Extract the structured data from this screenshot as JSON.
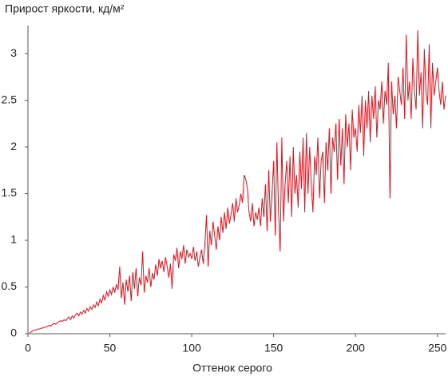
{
  "chart_data": {
    "type": "line",
    "title": "Прирост яркости, кд/м²",
    "x_label": "Оттенок серого",
    "xlim": [
      0,
      255
    ],
    "ylim": [
      0,
      3.3
    ],
    "xticks": [
      0,
      50,
      100,
      150,
      200,
      250
    ],
    "yticks": [
      0,
      0.5,
      1,
      1.5,
      2,
      2.5,
      3
    ],
    "grid": false,
    "series": [
      {
        "color": "#e8101a",
        "x": [
          1,
          2,
          3,
          4,
          5,
          6,
          7,
          8,
          9,
          10,
          11,
          12,
          13,
          14,
          15,
          16,
          17,
          18,
          19,
          20,
          21,
          22,
          23,
          24,
          25,
          26,
          27,
          28,
          29,
          30,
          31,
          32,
          33,
          34,
          35,
          36,
          37,
          38,
          39,
          40,
          41,
          42,
          43,
          44,
          45,
          46,
          47,
          48,
          49,
          50,
          51,
          52,
          53,
          54,
          55,
          56,
          57,
          58,
          59,
          60,
          61,
          62,
          63,
          64,
          65,
          66,
          67,
          68,
          69,
          70,
          71,
          72,
          73,
          74,
          75,
          76,
          77,
          78,
          79,
          80,
          81,
          82,
          83,
          84,
          85,
          86,
          87,
          88,
          89,
          90,
          91,
          92,
          93,
          94,
          95,
          96,
          97,
          98,
          99,
          100,
          101,
          102,
          103,
          104,
          105,
          106,
          107,
          108,
          109,
          110,
          111,
          112,
          113,
          114,
          115,
          116,
          117,
          118,
          119,
          120,
          121,
          122,
          123,
          124,
          125,
          126,
          127,
          128,
          129,
          130,
          131,
          132,
          133,
          134,
          135,
          136,
          137,
          138,
          139,
          140,
          141,
          142,
          143,
          144,
          145,
          146,
          147,
          148,
          149,
          150,
          151,
          152,
          153,
          154,
          155,
          156,
          157,
          158,
          159,
          160,
          161,
          162,
          163,
          164,
          165,
          166,
          167,
          168,
          169,
          170,
          171,
          172,
          173,
          174,
          175,
          176,
          177,
          178,
          179,
          180,
          181,
          182,
          183,
          184,
          185,
          186,
          187,
          188,
          189,
          190,
          191,
          192,
          193,
          194,
          195,
          196,
          197,
          198,
          199,
          200,
          201,
          202,
          203,
          204,
          205,
          206,
          207,
          208,
          209,
          210,
          211,
          212,
          213,
          214,
          215,
          216,
          217,
          218,
          219,
          220,
          221,
          222,
          223,
          224,
          225,
          226,
          227,
          228,
          229,
          230,
          231,
          232,
          233,
          234,
          235,
          236,
          237,
          238,
          239,
          240,
          241,
          242,
          243,
          244,
          245,
          246,
          247,
          248,
          249,
          250,
          251,
          252,
          253,
          254,
          255
        ],
        "values": [
          0.01,
          0.02,
          0.03,
          0.04,
          0.04,
          0.05,
          0.05,
          0.06,
          0.06,
          0.07,
          0.07,
          0.08,
          0.09,
          0.08,
          0.1,
          0.11,
          0.1,
          0.12,
          0.13,
          0.14,
          0.13,
          0.15,
          0.14,
          0.16,
          0.18,
          0.15,
          0.19,
          0.17,
          0.2,
          0.22,
          0.19,
          0.23,
          0.21,
          0.25,
          0.22,
          0.27,
          0.24,
          0.29,
          0.26,
          0.31,
          0.28,
          0.34,
          0.3,
          0.37,
          0.33,
          0.41,
          0.36,
          0.45,
          0.4,
          0.47,
          0.42,
          0.5,
          0.44,
          0.53,
          0.47,
          0.72,
          0.38,
          0.55,
          0.31,
          0.58,
          0.45,
          0.62,
          0.35,
          0.66,
          0.48,
          0.7,
          0.4,
          0.6,
          0.52,
          0.88,
          0.44,
          0.62,
          0.55,
          0.7,
          0.5,
          0.65,
          0.58,
          0.74,
          0.62,
          0.8,
          0.7,
          0.78,
          0.66,
          0.82,
          0.72,
          0.6,
          0.75,
          0.48,
          0.85,
          0.78,
          0.92,
          0.7,
          0.88,
          0.8,
          0.95,
          0.75,
          0.9,
          0.82,
          0.86,
          0.8,
          0.93,
          0.78,
          0.88,
          0.72,
          0.82,
          0.9,
          0.75,
          0.95,
          1.27,
          0.72,
          1.1,
          0.95,
          1.2,
          1.05,
          0.9,
          1.15,
          1.0,
          1.25,
          1.08,
          1.3,
          1.12,
          1.35,
          1.18,
          1.28,
          1.4,
          1.2,
          1.45,
          1.3,
          1.38,
          1.5,
          1.4,
          1.7,
          1.65,
          1.55,
          1.3,
          1.2,
          1.4,
          1.15,
          1.3,
          1.22,
          1.35,
          1.15,
          1.45,
          1.25,
          1.6,
          1.1,
          1.75,
          1.2,
          1.5,
          1.85,
          1.05,
          2.05,
          1.3,
          0.88,
          2.1,
          1.2,
          1.6,
          1.85,
          1.4,
          1.9,
          1.25,
          2.0,
          1.5,
          1.7,
          1.35,
          1.95,
          1.55,
          2.1,
          1.3,
          2.15,
          1.5,
          2.0,
          1.6,
          1.3,
          1.9,
          1.7,
          2.1,
          1.45,
          1.85,
          1.95,
          1.4,
          2.05,
          1.75,
          2.2,
          1.5,
          2.1,
          1.95,
          2.25,
          1.65,
          2.3,
          1.8,
          2.2,
          1.6,
          2.35,
          2.0,
          2.25,
          1.75,
          2.4,
          2.1,
          2.2,
          1.95,
          2.45,
          2.15,
          2.55,
          1.9,
          2.5,
          2.2,
          2.6,
          2.05,
          2.55,
          2.3,
          2.65,
          2.1,
          2.5,
          2.4,
          2.7,
          2.25,
          2.6,
          2.45,
          2.9,
          1.45,
          2.7,
          2.35,
          2.55,
          2.2,
          2.75,
          2.6,
          2.45,
          2.85,
          2.3,
          3.2,
          2.5,
          2.7,
          2.3,
          2.95,
          2.6,
          2.4,
          3.25,
          2.55,
          2.8,
          2.2,
          3.05,
          2.6,
          2.45,
          3.1,
          2.2,
          2.9,
          2.55,
          2.7,
          2.85,
          2.6,
          2.45,
          2.7,
          2.4,
          2.55
        ]
      }
    ]
  }
}
